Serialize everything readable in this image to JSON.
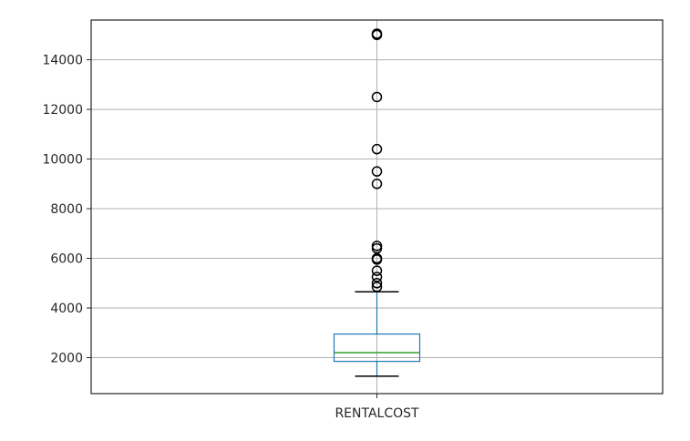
{
  "chart_data": {
    "type": "box",
    "title": "",
    "xlabel": "",
    "ylabel": "",
    "categories": [
      "RENTALCOST"
    ],
    "ylim": [
      550,
      15600
    ],
    "yticks": [
      2000,
      4000,
      6000,
      8000,
      10000,
      12000,
      14000
    ],
    "ytick_labels": [
      "2000",
      "4000",
      "6000",
      "8000",
      "10000",
      "12000",
      "14000"
    ],
    "grid": true,
    "box": {
      "whisker_low": 1250,
      "q1": 1850,
      "median": 2200,
      "q3": 2950,
      "whisker_high": 4650,
      "outliers": [
        4850,
        5000,
        5250,
        5500,
        5950,
        6000,
        6400,
        6500,
        9000,
        9500,
        10400,
        12500,
        15000,
        15050
      ]
    },
    "colors": {
      "box": "#1f77b4",
      "median": "#2ca02c",
      "whisker": "#000000",
      "outlier": "#000000",
      "grid": "#b0b0b0"
    }
  }
}
